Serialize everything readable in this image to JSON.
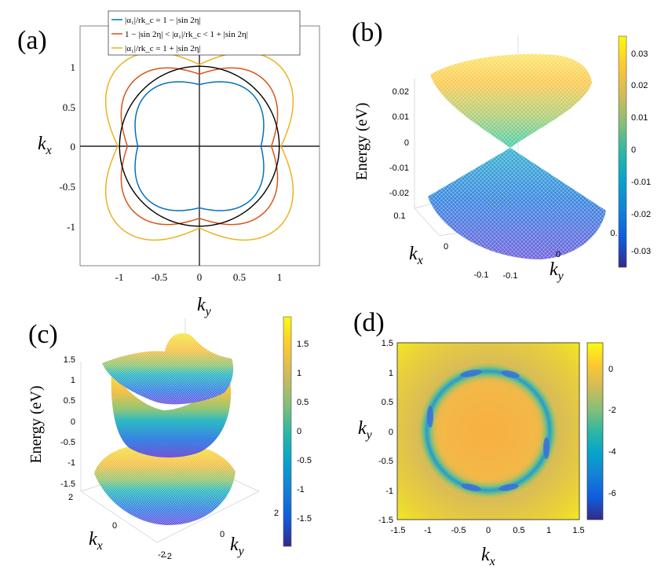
{
  "panels": {
    "a": {
      "label": "(a)",
      "legend": [
        {
          "text": "|α₁|/rk_c = 1 − |sin 2η|",
          "color": "#0072BD"
        },
        {
          "text": "1 − |sin 2η| < |α₁|/rk_c < 1 + |sin 2η|",
          "color": "#D95319"
        },
        {
          "text": "|α₁|/rk_c = 1 + |sin 2η|",
          "color": "#EDB120"
        }
      ],
      "y_ticks": [
        "1",
        "0.5",
        "0",
        "-0.5",
        "-1"
      ],
      "x_ticks": [
        "-1",
        "-0.5",
        "0",
        "0.5",
        "1"
      ],
      "xlabel": "k",
      "xlabel_sub": "y",
      "ylabel": "k",
      "ylabel_sub": "x"
    },
    "b": {
      "label": "(b)",
      "zlabel": "Energy (eV)",
      "z_ticks": [
        "0.02",
        "0.01",
        "0",
        "-0.01",
        "-0.02"
      ],
      "kx_ticks": [
        "0.1",
        "0",
        "-0.1"
      ],
      "ky_ticks": [
        "-0.1",
        "0",
        "0."
      ],
      "kx_label": "k",
      "kx_sub": "x",
      "ky_label": "k",
      "ky_sub": "y",
      "colorbar_ticks": [
        "0.03",
        "0.02",
        "0.01",
        "0",
        "-0.01",
        "-0.02",
        "-0.03"
      ]
    },
    "c": {
      "label": "(c)",
      "zlabel": "Energy (eV)",
      "z_ticks": [
        "1.5",
        "1",
        "0.5",
        "0",
        "-0.5",
        "-1",
        "-1.5"
      ],
      "kx_ticks": [
        "2",
        "0",
        "-2"
      ],
      "ky_ticks": [
        "-2",
        "0",
        "2"
      ],
      "kx_label": "k",
      "kx_sub": "x",
      "ky_label": "k",
      "ky_sub": "y",
      "colorbar_ticks": [
        "1.5",
        "1",
        "0.5",
        "0",
        "-0.5",
        "-1",
        "-1.5"
      ]
    },
    "d": {
      "label": "(d)",
      "y_ticks": [
        "1.5",
        "1",
        "0.5",
        "0",
        "-0.5",
        "-1",
        "-1.5"
      ],
      "x_ticks": [
        "-1.5",
        "-1",
        "-0.5",
        "0",
        "0.5",
        "1",
        "1.5"
      ],
      "xlabel": "k",
      "xlabel_sub": "x",
      "ylabel": "k",
      "ylabel_sub": "y",
      "colorbar_ticks": [
        "0",
        "-2",
        "-4",
        "-6"
      ]
    }
  },
  "chart_data": [
    {
      "type": "line",
      "panel": "a",
      "title": "",
      "xlabel": "k_y",
      "ylabel": "k_x",
      "xlim": [
        -1.5,
        1.5
      ],
      "ylim": [
        -1.5,
        1.5
      ],
      "series": [
        {
          "name": "|α₁|/rk_c = 1 − |sin 2η|",
          "color": "#0072BD",
          "axis_radius": 0.77,
          "diagonal_radius": 0.93
        },
        {
          "name": "1 − |sin 2η| < |α₁|/rk_c < 1 + |sin 2η|",
          "color": "#D95319",
          "axis_radius": 0.9,
          "diagonal_radius": 1.16
        },
        {
          "name": "|α₁|/rk_c = 1 + |sin 2η|",
          "color": "#EDB120",
          "axis_radius": 1.02,
          "diagonal_radius": 1.42
        },
        {
          "name": "reference circle",
          "color": "#000000",
          "radius": 1.0
        }
      ]
    },
    {
      "type": "surface",
      "panel": "b",
      "kx_range": [
        -0.1,
        0.1
      ],
      "ky_range": [
        -0.1,
        0.1
      ],
      "energy_range": [
        -0.025,
        0.025
      ],
      "colorbar_range": [
        -0.035,
        0.035
      ]
    },
    {
      "type": "surface",
      "panel": "c",
      "kx_range": [
        -2,
        2
      ],
      "ky_range": [
        -2,
        2
      ],
      "energy_range": [
        -1.5,
        1.5
      ],
      "colorbar_range": [
        -1.9,
        1.9
      ]
    },
    {
      "type": "heatmap",
      "panel": "d",
      "x_range": [
        -1.5,
        1.5
      ],
      "y_range": [
        -1.5,
        1.5
      ],
      "ring_radius": 0.95,
      "colorbar_range": [
        -7,
        1.5
      ]
    }
  ]
}
